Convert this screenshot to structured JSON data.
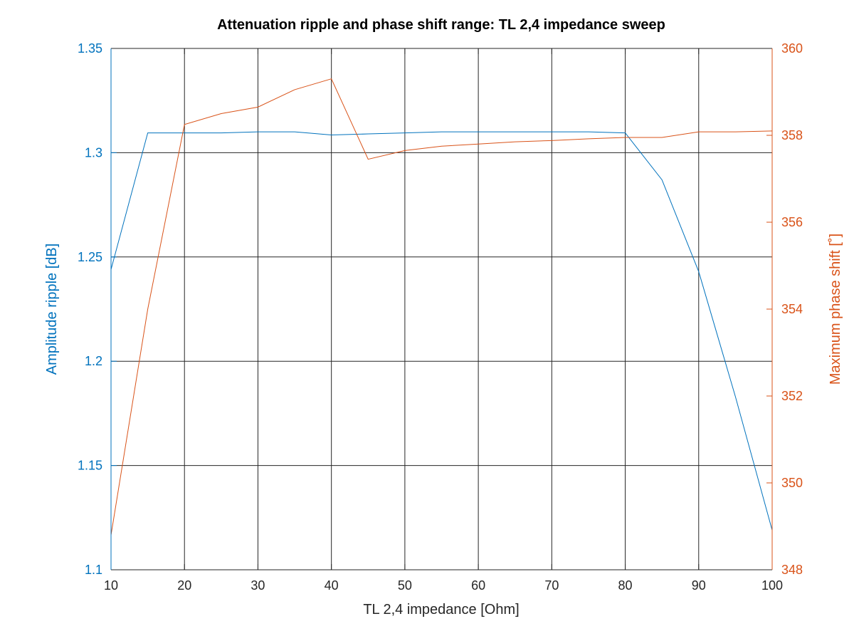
{
  "chart_data": {
    "type": "line",
    "title": "Attenuation ripple and phase shift range: TL 2,4 impedance sweep",
    "xlabel": "TL 2,4 impedance [Ohm]",
    "ylabel_left": "Amplitude ripple [dB]",
    "ylabel_right": "Maximum phase shift [˚]",
    "xlim": [
      10,
      100
    ],
    "ylim_left": [
      1.1,
      1.35
    ],
    "ylim_right": [
      348,
      360
    ],
    "x_ticks": [
      "10",
      "20",
      "30",
      "40",
      "50",
      "60",
      "70",
      "80",
      "90",
      "100"
    ],
    "y_left_ticks": [
      "1.1",
      "1.15",
      "1.2",
      "1.25",
      "1.3",
      "1.35"
    ],
    "y_right_ticks": [
      "348",
      "350",
      "352",
      "354",
      "356",
      "358",
      "360"
    ],
    "grid": true,
    "colors": {
      "left": "#0072BD",
      "right": "#D95319"
    },
    "series": [
      {
        "axis": "left",
        "x": [
          10,
          15,
          20,
          25,
          30,
          35,
          40,
          45,
          50,
          55,
          60,
          65,
          70,
          75,
          80,
          85,
          90,
          95,
          100
        ],
        "values": [
          1.244,
          1.3095,
          1.3095,
          1.3095,
          1.31,
          1.31,
          1.3085,
          1.309,
          1.3095,
          1.31,
          1.31,
          1.31,
          1.31,
          1.31,
          1.3095,
          1.287,
          1.243,
          1.183,
          1.119
        ]
      },
      {
        "axis": "right",
        "x": [
          10,
          15,
          20,
          25,
          30,
          35,
          40,
          45,
          50,
          55,
          60,
          65,
          70,
          75,
          80,
          85,
          90,
          95,
          100
        ],
        "values": [
          348.8,
          354.0,
          358.25,
          358.5,
          358.65,
          359.05,
          359.3,
          357.45,
          357.65,
          357.75,
          357.8,
          357.85,
          357.88,
          357.92,
          357.95,
          357.95,
          358.08,
          358.08,
          358.1
        ]
      }
    ]
  }
}
